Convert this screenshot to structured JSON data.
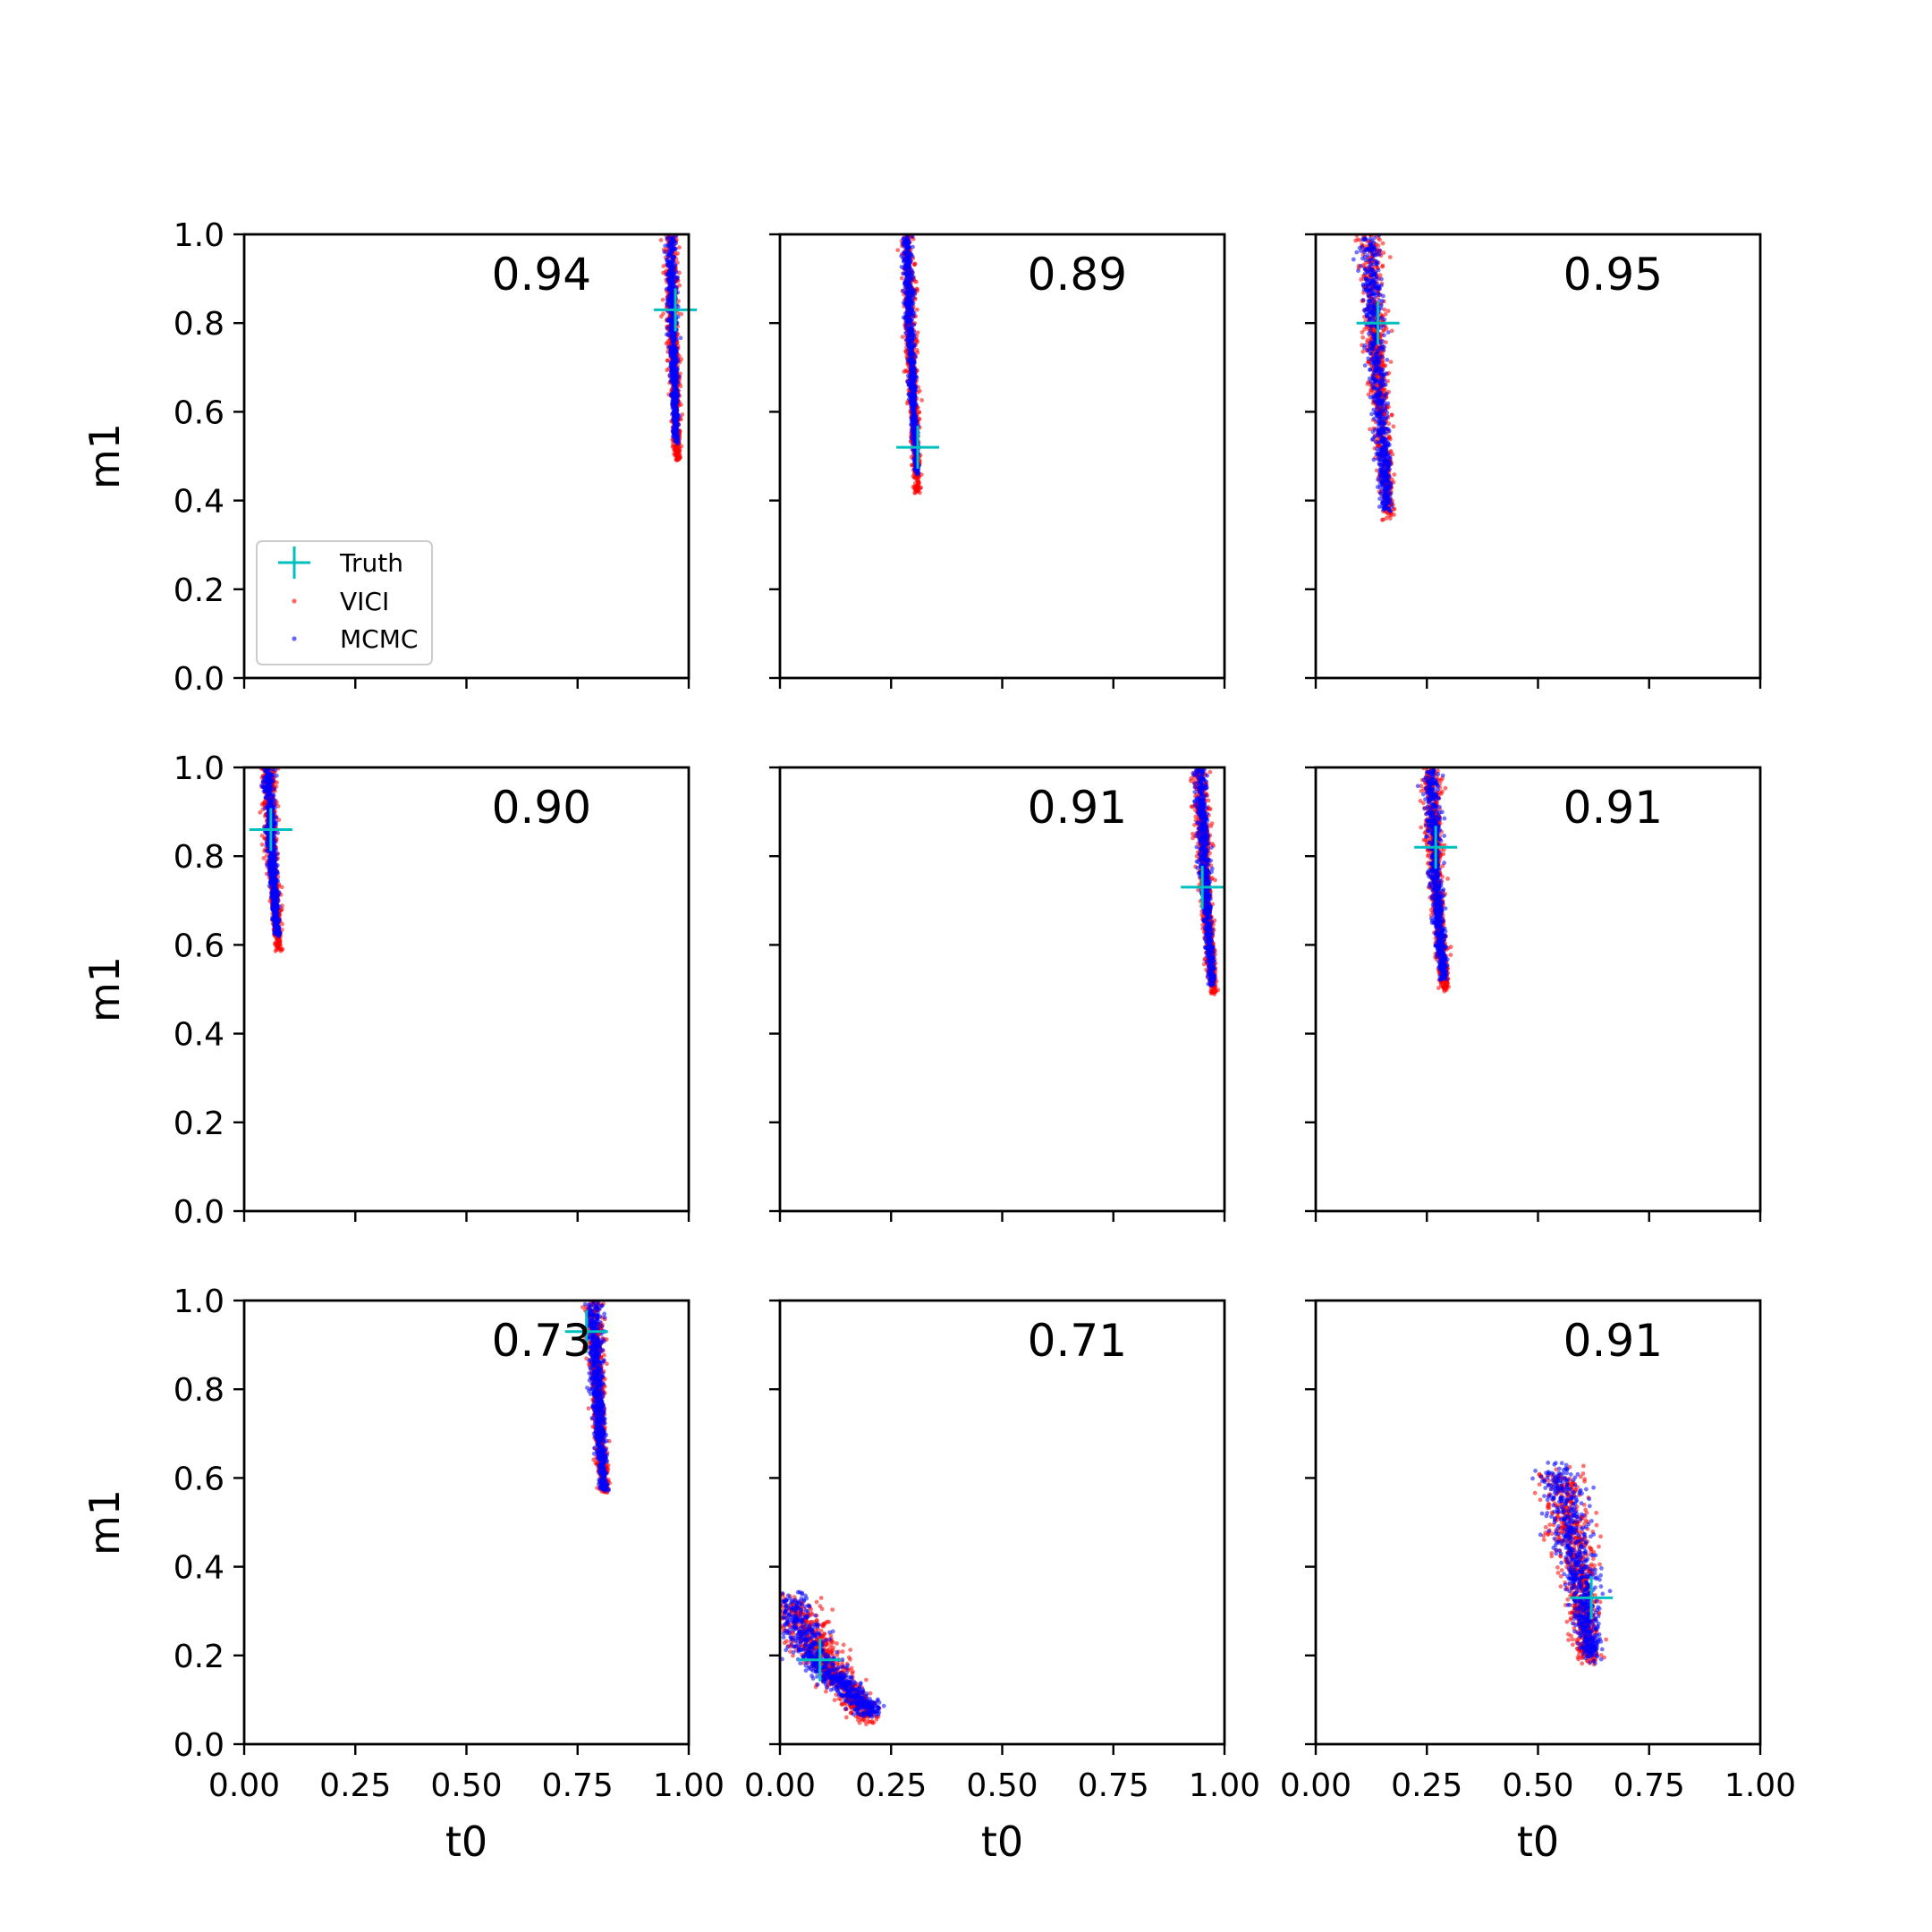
{
  "figure": {
    "xlabel": "t0",
    "ylabel": "m1",
    "xticks": [
      "0.00",
      "0.25",
      "0.50",
      "0.75",
      "1.00"
    ],
    "yticks": [
      "0.0",
      "0.2",
      "0.4",
      "0.6",
      "0.8",
      "1.0"
    ],
    "legend": {
      "placement": "lower-left of first panel",
      "truth": "Truth",
      "vici": "VICI",
      "mcmc": "MCMC"
    },
    "colors": {
      "truth": "#00bfbf",
      "vici": "#ff0000",
      "mcmc": "#0000ff",
      "axes": "#000000"
    }
  },
  "chart_data": [
    {
      "type": "scatter",
      "title": "",
      "xlabel": "",
      "ylabel": "m1",
      "xlim": [
        0,
        1
      ],
      "ylim": [
        0,
        1
      ],
      "grid": false,
      "annotation": "0.94",
      "truth": [
        0.97,
        0.83
      ],
      "series": [
        {
          "name": "VICI",
          "ridge": [
            [
              0.96,
              1.0
            ],
            [
              0.965,
              0.75
            ],
            [
              0.975,
              0.49
            ]
          ],
          "width": 0.022
        },
        {
          "name": "MCMC",
          "ridge": [
            [
              0.96,
              1.0
            ],
            [
              0.965,
              0.75
            ],
            [
              0.972,
              0.53
            ]
          ],
          "width": 0.016
        }
      ]
    },
    {
      "type": "scatter",
      "title": "",
      "xlabel": "",
      "ylabel": "",
      "xlim": [
        0,
        1
      ],
      "ylim": [
        0,
        1
      ],
      "grid": false,
      "annotation": "0.89",
      "truth": [
        0.31,
        0.52
      ],
      "series": [
        {
          "name": "VICI",
          "ridge": [
            [
              0.285,
              1.0
            ],
            [
              0.295,
              0.72
            ],
            [
              0.31,
              0.42
            ]
          ],
          "width": 0.022
        },
        {
          "name": "MCMC",
          "ridge": [
            [
              0.285,
              1.0
            ],
            [
              0.295,
              0.72
            ],
            [
              0.308,
              0.46
            ]
          ],
          "width": 0.016
        }
      ]
    },
    {
      "type": "scatter",
      "title": "",
      "xlabel": "",
      "ylabel": "",
      "xlim": [
        0,
        1
      ],
      "ylim": [
        0,
        1
      ],
      "grid": false,
      "annotation": "0.95",
      "truth": [
        0.14,
        0.8
      ],
      "series": [
        {
          "name": "VICI",
          "ridge": [
            [
              0.12,
              1.0
            ],
            [
              0.14,
              0.68
            ],
            [
              0.165,
              0.36
            ]
          ],
          "width": 0.04
        },
        {
          "name": "MCMC",
          "ridge": [
            [
              0.12,
              1.0
            ],
            [
              0.14,
              0.68
            ],
            [
              0.16,
              0.38
            ]
          ],
          "width": 0.034
        }
      ]
    },
    {
      "type": "scatter",
      "title": "",
      "xlabel": "",
      "ylabel": "m1",
      "xlim": [
        0,
        1
      ],
      "ylim": [
        0,
        1
      ],
      "grid": false,
      "annotation": "0.90",
      "truth": [
        0.06,
        0.86
      ],
      "series": [
        {
          "name": "VICI",
          "ridge": [
            [
              0.055,
              1.0
            ],
            [
              0.062,
              0.8
            ],
            [
              0.078,
              0.59
            ]
          ],
          "width": 0.024
        },
        {
          "name": "MCMC",
          "ridge": [
            [
              0.055,
              1.0
            ],
            [
              0.062,
              0.8
            ],
            [
              0.075,
              0.62
            ]
          ],
          "width": 0.018
        }
      ]
    },
    {
      "type": "scatter",
      "title": "",
      "xlabel": "",
      "ylabel": "",
      "xlim": [
        0,
        1
      ],
      "ylim": [
        0,
        1
      ],
      "grid": false,
      "annotation": "0.91",
      "truth": [
        0.95,
        0.73
      ],
      "series": [
        {
          "name": "VICI",
          "ridge": [
            [
              0.945,
              1.0
            ],
            [
              0.955,
              0.76
            ],
            [
              0.975,
              0.49
            ]
          ],
          "width": 0.026
        },
        {
          "name": "MCMC",
          "ridge": [
            [
              0.945,
              1.0
            ],
            [
              0.955,
              0.76
            ],
            [
              0.972,
              0.51
            ]
          ],
          "width": 0.02
        }
      ]
    },
    {
      "type": "scatter",
      "title": "",
      "xlabel": "",
      "ylabel": "",
      "xlim": [
        0,
        1
      ],
      "ylim": [
        0,
        1
      ],
      "grid": false,
      "annotation": "0.91",
      "truth": [
        0.27,
        0.82
      ],
      "series": [
        {
          "name": "VICI",
          "ridge": [
            [
              0.26,
              1.0
            ],
            [
              0.27,
              0.74
            ],
            [
              0.29,
              0.5
            ]
          ],
          "width": 0.03
        },
        {
          "name": "MCMC",
          "ridge": [
            [
              0.26,
              1.0
            ],
            [
              0.27,
              0.74
            ],
            [
              0.288,
              0.52
            ]
          ],
          "width": 0.024
        }
      ]
    },
    {
      "type": "scatter",
      "title": "",
      "xlabel": "t0",
      "ylabel": "m1",
      "xlim": [
        0,
        1
      ],
      "ylim": [
        0,
        1
      ],
      "grid": false,
      "annotation": "0.73",
      "truth": [
        0.77,
        0.93
      ],
      "series": [
        {
          "name": "VICI",
          "ridge": [
            [
              0.785,
              1.0
            ],
            [
              0.795,
              0.78
            ],
            [
              0.81,
              0.57
            ]
          ],
          "width": 0.028
        },
        {
          "name": "MCMC",
          "ridge": [
            [
              0.785,
              1.0
            ],
            [
              0.795,
              0.78
            ],
            [
              0.81,
              0.57
            ]
          ],
          "width": 0.026
        }
      ]
    },
    {
      "type": "scatter",
      "title": "",
      "xlabel": "t0",
      "ylabel": "",
      "xlim": [
        0,
        1
      ],
      "ylim": [
        0,
        1
      ],
      "grid": false,
      "annotation": "0.71",
      "truth": [
        0.09,
        0.19
      ],
      "series": [
        {
          "name": "VICI",
          "ridge": [
            [
              0.02,
              0.33
            ],
            [
              0.09,
              0.2
            ],
            [
              0.2,
              0.06
            ]
          ],
          "width": 0.09
        },
        {
          "name": "MCMC",
          "ridge": [
            [
              0.01,
              0.34
            ],
            [
              0.08,
              0.19
            ],
            [
              0.21,
              0.07
            ]
          ],
          "width": 0.075
        }
      ]
    },
    {
      "type": "scatter",
      "title": "",
      "xlabel": "t0",
      "ylabel": "",
      "xlim": [
        0,
        1
      ],
      "ylim": [
        0,
        1
      ],
      "grid": false,
      "annotation": "0.91",
      "truth": [
        0.62,
        0.33
      ],
      "series": [
        {
          "name": "VICI",
          "ridge": [
            [
              0.545,
              0.62
            ],
            [
              0.59,
              0.4
            ],
            [
              0.615,
              0.19
            ]
          ],
          "width": 0.075
        },
        {
          "name": "MCMC",
          "ridge": [
            [
              0.545,
              0.63
            ],
            [
              0.59,
              0.4
            ],
            [
              0.62,
              0.2
            ]
          ],
          "width": 0.068
        }
      ]
    }
  ]
}
